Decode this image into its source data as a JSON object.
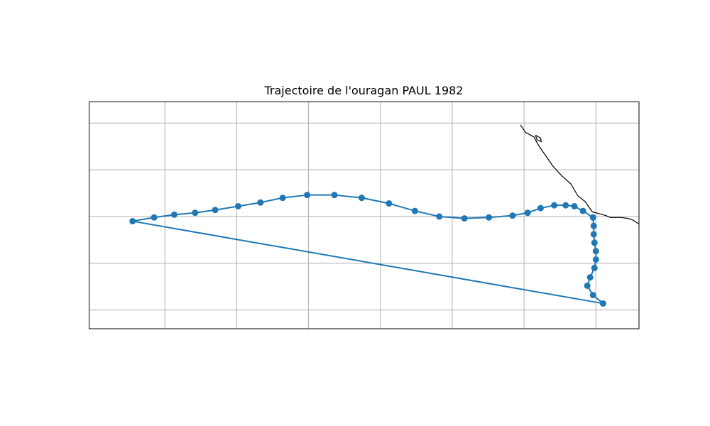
{
  "chart_data": {
    "type": "map-track",
    "title": "Trajectoire de l'ouragan PAUL 1982",
    "grid": true,
    "colors": {
      "track": "#1f77b4",
      "coastline": "#000000",
      "grid": "#b0b0b0"
    },
    "track": [
      {
        "lon": -139.5,
        "lat": 19.5
      },
      {
        "lon": -136.5,
        "lat": 19.9
      },
      {
        "lon": -133.7,
        "lat": 20.2
      },
      {
        "lon": -130.8,
        "lat": 20.4
      },
      {
        "lon": -128.0,
        "lat": 20.7
      },
      {
        "lon": -124.8,
        "lat": 21.1
      },
      {
        "lon": -121.7,
        "lat": 21.5
      },
      {
        "lon": -118.6,
        "lat": 22.0
      },
      {
        "lon": -115.2,
        "lat": 22.3
      },
      {
        "lon": -111.4,
        "lat": 22.3
      },
      {
        "lon": -107.6,
        "lat": 22.0
      },
      {
        "lon": -103.8,
        "lat": 21.4
      },
      {
        "lon": -100.2,
        "lat": 20.6
      },
      {
        "lon": -96.8,
        "lat": 20.0
      },
      {
        "lon": -93.3,
        "lat": 19.8
      },
      {
        "lon": -89.9,
        "lat": 19.9
      },
      {
        "lon": -86.6,
        "lat": 20.1
      },
      {
        "lon": -84.5,
        "lat": 20.4
      },
      {
        "lon": -82.7,
        "lat": 20.9
      },
      {
        "lon": -80.8,
        "lat": 21.2
      },
      {
        "lon": -79.2,
        "lat": 21.2
      },
      {
        "lon": -78.0,
        "lat": 21.1
      },
      {
        "lon": -76.8,
        "lat": 20.6
      },
      {
        "lon": -75.4,
        "lat": 19.9
      },
      {
        "lon": -75.3,
        "lat": 19.0
      },
      {
        "lon": -75.3,
        "lat": 18.1
      },
      {
        "lon": -75.2,
        "lat": 17.2
      },
      {
        "lon": -75.0,
        "lat": 16.3
      },
      {
        "lon": -75.0,
        "lat": 15.4
      },
      {
        "lon": -75.2,
        "lat": 14.5
      },
      {
        "lon": -75.8,
        "lat": 13.5
      },
      {
        "lon": -76.2,
        "lat": 12.6
      },
      {
        "lon": -75.4,
        "lat": 11.6
      },
      {
        "lon": -74.0,
        "lat": 10.7
      }
    ],
    "coastline": [
      [
        -85.5,
        29.8
      ],
      [
        -84.8,
        29.0
      ],
      [
        -83.6,
        28.5
      ],
      [
        -83.2,
        27.9
      ],
      [
        -82.8,
        27.4
      ],
      [
        -81.8,
        26.3
      ],
      [
        -81.0,
        25.4
      ],
      [
        -79.8,
        24.4
      ],
      [
        -78.5,
        23.5
      ],
      [
        -77.5,
        22.2
      ],
      [
        -76.5,
        21.6
      ],
      [
        -75.5,
        20.5
      ],
      [
        -74.5,
        20.3
      ],
      [
        -73.6,
        20.1
      ],
      [
        -73.0,
        19.9
      ],
      [
        -71.5,
        19.9
      ],
      [
        -70.5,
        19.8
      ],
      [
        -69.8,
        19.6
      ],
      [
        -69.2,
        19.3
      ],
      [
        -68.5,
        18.9
      ],
      [
        -68.0,
        18.2
      ],
      [
        -67.2,
        17.9
      ],
      [
        -66.0,
        17.8
      ],
      [
        -64.8,
        17.6
      ]
    ],
    "island": [
      [
        -83.4,
        28.7
      ],
      [
        -82.7,
        28.4
      ],
      [
        -82.6,
        28.0
      ],
      [
        -83.2,
        28.2
      ],
      [
        -83.4,
        28.7
      ]
    ],
    "xlim": [
      -145.6,
      -69.0
    ],
    "ylim": [
      8.0,
      32.3
    ],
    "x_gridlines": [
      -135,
      -125,
      -115,
      -105,
      -95,
      -85,
      -75
    ],
    "y_gridlines": [
      30,
      25,
      20,
      15,
      10
    ]
  }
}
